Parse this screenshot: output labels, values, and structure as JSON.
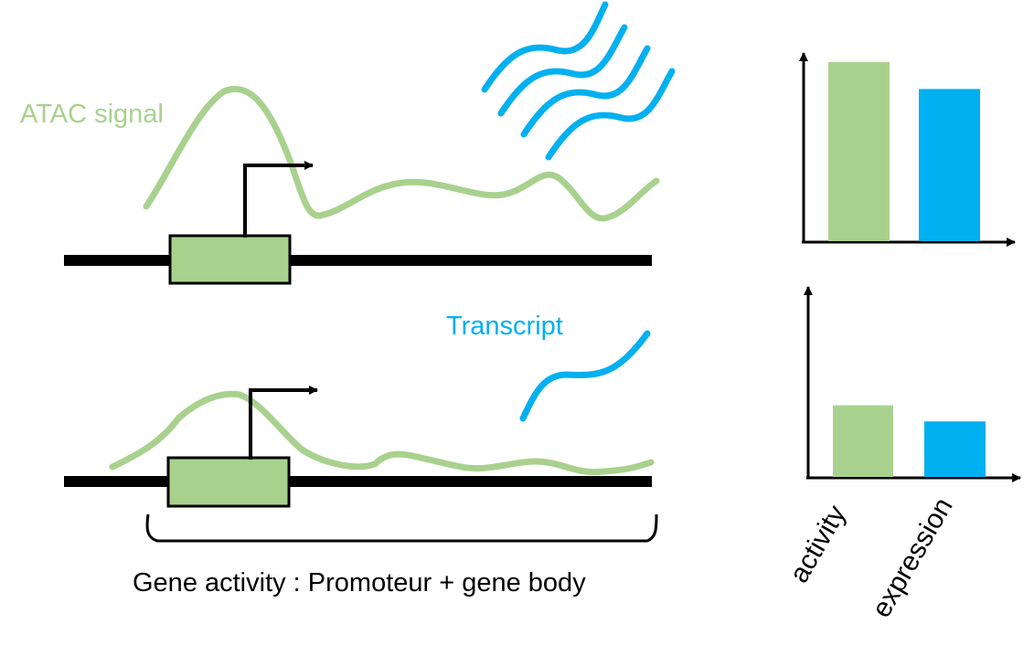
{
  "labels": {
    "atac_signal": "ATAC signal",
    "transcript": "Transcript",
    "gene_activity": "Gene activity : Promoteur + gene body"
  },
  "colors": {
    "atac_green": "#a9d18e",
    "transcript_blue": "#00b0f0",
    "dna_black": "#000000"
  },
  "chart_data": [
    {
      "type": "bar",
      "categories": [
        "activity",
        "expression"
      ],
      "values": [
        100,
        85
      ],
      "xlabel": "",
      "ylabel": "",
      "grid": false
    },
    {
      "type": "bar",
      "categories": [
        "activity",
        "expression"
      ],
      "values": [
        40,
        31
      ],
      "xlabel": "",
      "ylabel": "",
      "grid": false
    }
  ],
  "axis_labels": {
    "activity": "activity",
    "expression": "expression"
  }
}
